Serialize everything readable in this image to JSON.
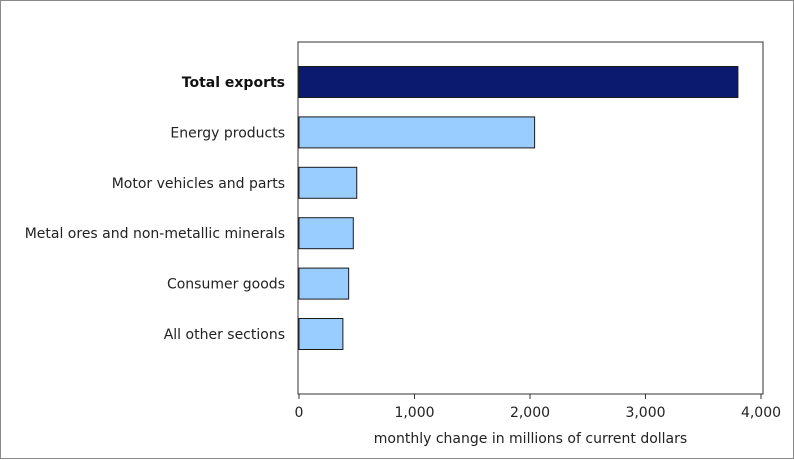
{
  "chart_data": {
    "type": "bar",
    "orientation": "horizontal",
    "title": "",
    "categories": [
      "Total exports",
      "Energy products",
      "Motor vehicles and parts",
      "Metal ores and non-metallic minerals",
      "Consumer goods",
      "All other sections"
    ],
    "emphasized_category": "Total exports",
    "values": [
      3800,
      2040,
      500,
      470,
      430,
      380
    ],
    "xlabel": "monthly change in millions of current dollars",
    "ylabel": "",
    "xlim": [
      0,
      4000
    ],
    "ticks": [
      0,
      1000,
      2000,
      3000,
      4000
    ],
    "tick_labels": [
      "0",
      "1,000",
      "2,000",
      "3,000",
      "4,000"
    ],
    "grid": false,
    "colors": {
      "total": "#0b1a6e",
      "component": "#99ccff",
      "bar_stroke": "#1a1a1a",
      "axis": "#333333"
    }
  }
}
